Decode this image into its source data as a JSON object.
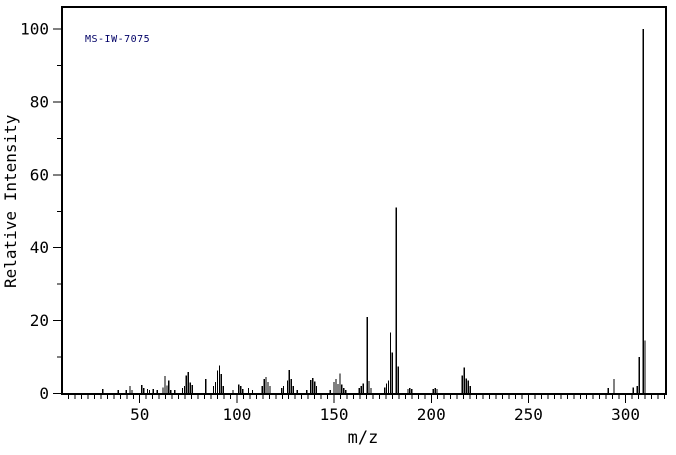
{
  "figure": {
    "background": "#ffffff",
    "line_color": "#000000",
    "annotation_color": "#000066"
  },
  "chart_data": {
    "type": "bar",
    "subtype": "mass-spectrum",
    "title": "",
    "xlabel": "m/z",
    "ylabel": "Relative Intensity",
    "annotation": {
      "text": "MS-IW-7075"
    },
    "xlim": [
      10,
      320
    ],
    "ylim": [
      0,
      106
    ],
    "axis_max_intensity": 100,
    "x_major_ticks": [
      50,
      100,
      150,
      200,
      250,
      300
    ],
    "x_minor_tick_step": 3.3333,
    "y_major_ticks": [
      0,
      20,
      40,
      60,
      80,
      100
    ],
    "y_minor_tick_step": 10,
    "grid": false,
    "legend": false,
    "peaks": [
      [
        31,
        1.2
      ],
      [
        39,
        1.0
      ],
      [
        43,
        1.0
      ],
      [
        45,
        2.0
      ],
      [
        46,
        1.0
      ],
      [
        51,
        2.3
      ],
      [
        52,
        1.5
      ],
      [
        54,
        1.2
      ],
      [
        55,
        1.0
      ],
      [
        57,
        1.3
      ],
      [
        59,
        1.0
      ],
      [
        62,
        1.7
      ],
      [
        63,
        4.8
      ],
      [
        64,
        2.2
      ],
      [
        65,
        3.6
      ],
      [
        66,
        1.0
      ],
      [
        68,
        1.0
      ],
      [
        72,
        1.5
      ],
      [
        73,
        2.0
      ],
      [
        74,
        4.9
      ],
      [
        75,
        5.9
      ],
      [
        76,
        3.0
      ],
      [
        77,
        2.3
      ],
      [
        84,
        4.0
      ],
      [
        88,
        2.0
      ],
      [
        89,
        3.1
      ],
      [
        90,
        6.3
      ],
      [
        91,
        7.7
      ],
      [
        92,
        5.4
      ],
      [
        93,
        2.0
      ],
      [
        98,
        1.0
      ],
      [
        101,
        2.5
      ],
      [
        102,
        2.0
      ],
      [
        103,
        1.3
      ],
      [
        106,
        1.5
      ],
      [
        108,
        1.0
      ],
      [
        113,
        2.0
      ],
      [
        114,
        4.0
      ],
      [
        115,
        4.5
      ],
      [
        116,
        3.1
      ],
      [
        117,
        2.0
      ],
      [
        123,
        1.5
      ],
      [
        124,
        2.0
      ],
      [
        126,
        3.5
      ],
      [
        127,
        6.5
      ],
      [
        128,
        4.0
      ],
      [
        129,
        2.0
      ],
      [
        131,
        1.0
      ],
      [
        136,
        1.0
      ],
      [
        138,
        3.7
      ],
      [
        139,
        4.3
      ],
      [
        140,
        3.3
      ],
      [
        141,
        2.0
      ],
      [
        148,
        1.0
      ],
      [
        150,
        3.1
      ],
      [
        151,
        4.0
      ],
      [
        152,
        2.6
      ],
      [
        153,
        5.5
      ],
      [
        154,
        2.5
      ],
      [
        155,
        1.5
      ],
      [
        156,
        1.0
      ],
      [
        163,
        1.5
      ],
      [
        164,
        2.0
      ],
      [
        165,
        2.8
      ],
      [
        167,
        21.0
      ],
      [
        168,
        3.4
      ],
      [
        169,
        1.5
      ],
      [
        176,
        1.6
      ],
      [
        177,
        2.7
      ],
      [
        178,
        3.6
      ],
      [
        179,
        16.8
      ],
      [
        180,
        11.3
      ],
      [
        182,
        51.0
      ],
      [
        183,
        7.4
      ],
      [
        188,
        1.2
      ],
      [
        189,
        1.5
      ],
      [
        190,
        1.2
      ],
      [
        201,
        1.2
      ],
      [
        202,
        1.5
      ],
      [
        203,
        1.2
      ],
      [
        216,
        4.9
      ],
      [
        217,
        7.2
      ],
      [
        218,
        4.1
      ],
      [
        219,
        3.6
      ],
      [
        220,
        2.0
      ],
      [
        291,
        1.5
      ],
      [
        294,
        4.0
      ],
      [
        304,
        1.7
      ],
      [
        306,
        2.0
      ],
      [
        307,
        10.0
      ],
      [
        309,
        100.0
      ],
      [
        310,
        14.6
      ]
    ]
  }
}
